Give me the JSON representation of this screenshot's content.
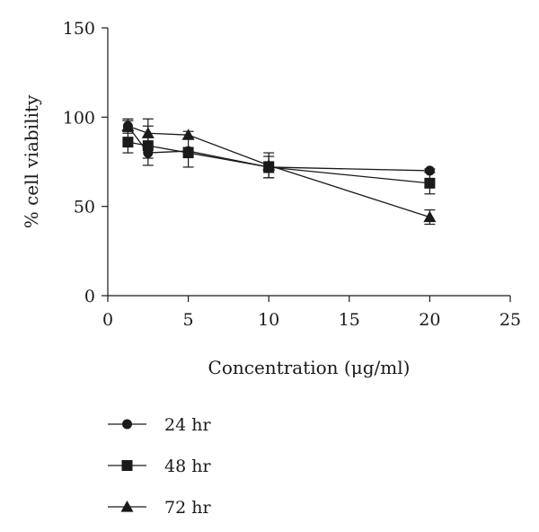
{
  "chart_data": {
    "type": "line",
    "title": "",
    "xlabel": "Concentration (μg/ml)",
    "ylabel": "% cell viability",
    "xlim": [
      0,
      25
    ],
    "ylim": [
      0,
      150
    ],
    "xticks": [
      0,
      5,
      10,
      15,
      20,
      25
    ],
    "yticks": [
      0,
      50,
      100,
      150
    ],
    "grid": false,
    "legend_position": "bottom-left",
    "colors": {
      "ink": "#1a1a1a"
    },
    "series": [
      {
        "name": "24 hr",
        "marker": "circle",
        "x": [
          1.25,
          2.5,
          5,
          10,
          20
        ],
        "y": [
          95,
          80,
          81,
          72,
          70
        ],
        "err": [
          3,
          3,
          2,
          3,
          1
        ]
      },
      {
        "name": "48 hr",
        "marker": "square",
        "x": [
          1.25,
          2.5,
          5,
          10,
          20
        ],
        "y": [
          86,
          84,
          80,
          72,
          63
        ],
        "err": [
          6,
          11,
          8,
          6,
          6
        ]
      },
      {
        "name": "72 hr",
        "marker": "triangle",
        "x": [
          1.25,
          2.5,
          5,
          10,
          20
        ],
        "y": [
          95,
          91,
          90,
          73,
          44
        ],
        "err": [
          4,
          8,
          2,
          7,
          4
        ]
      }
    ]
  }
}
